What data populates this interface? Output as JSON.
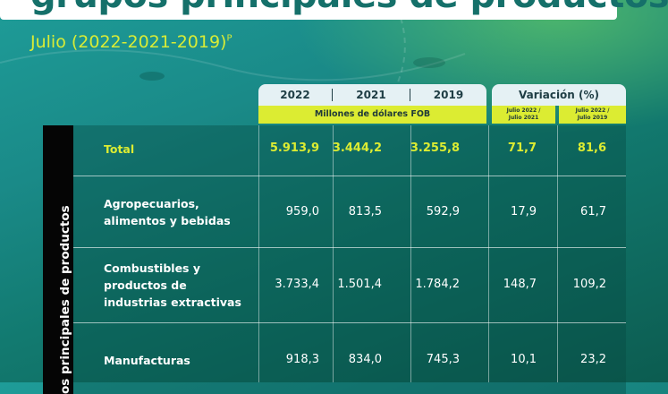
{
  "header": {
    "title": "grupos principales de productos",
    "subtitle": "Julio (2022-2021-2019)",
    "subtitle_mark": "P"
  },
  "table": {
    "year_headers": [
      "2022",
      "2021",
      "2019"
    ],
    "variation_header": "Variación (%)",
    "units": "Millones de dólares FOB",
    "variation_subheaders": [
      [
        "Julio 2022 /",
        "Julio 2021"
      ],
      [
        "Julio 2022 /",
        "Julio 2019"
      ]
    ],
    "side_label": "os principales de productos"
  },
  "chart_data": {
    "type": "table",
    "title": "grupos principales de productos",
    "subtitle": "Julio (2022-2021-2019)P",
    "units": "Millones de dólares FOB",
    "columns": [
      "2022",
      "2021",
      "2019",
      "Julio 2022 / Julio 2021",
      "Julio 2022 / Julio 2019"
    ],
    "rows": [
      {
        "label": [
          "Total"
        ],
        "values": [
          "5.913,9",
          "3.444,2",
          "3.255,8",
          "71,7",
          "81,6"
        ],
        "highlight": true
      },
      {
        "label": [
          "Agropecuarios,",
          "alimentos y bebidas"
        ],
        "values": [
          "959,0",
          "813,5",
          "592,9",
          "17,9",
          "61,7"
        ]
      },
      {
        "label": [
          "Combustibles y",
          "productos de",
          "industrias extractivas"
        ],
        "values": [
          "3.733,4",
          "1.501,4",
          "1.784,2",
          "148,7",
          "109,2"
        ]
      },
      {
        "label": [
          "Manufacturas"
        ],
        "values": [
          "918,3",
          "834,0",
          "745,3",
          "10,1",
          "23,2"
        ]
      }
    ]
  },
  "colors": {
    "accent": "#dcec32",
    "title_text": "#15706a",
    "header_bg": "#e5f1f4"
  }
}
